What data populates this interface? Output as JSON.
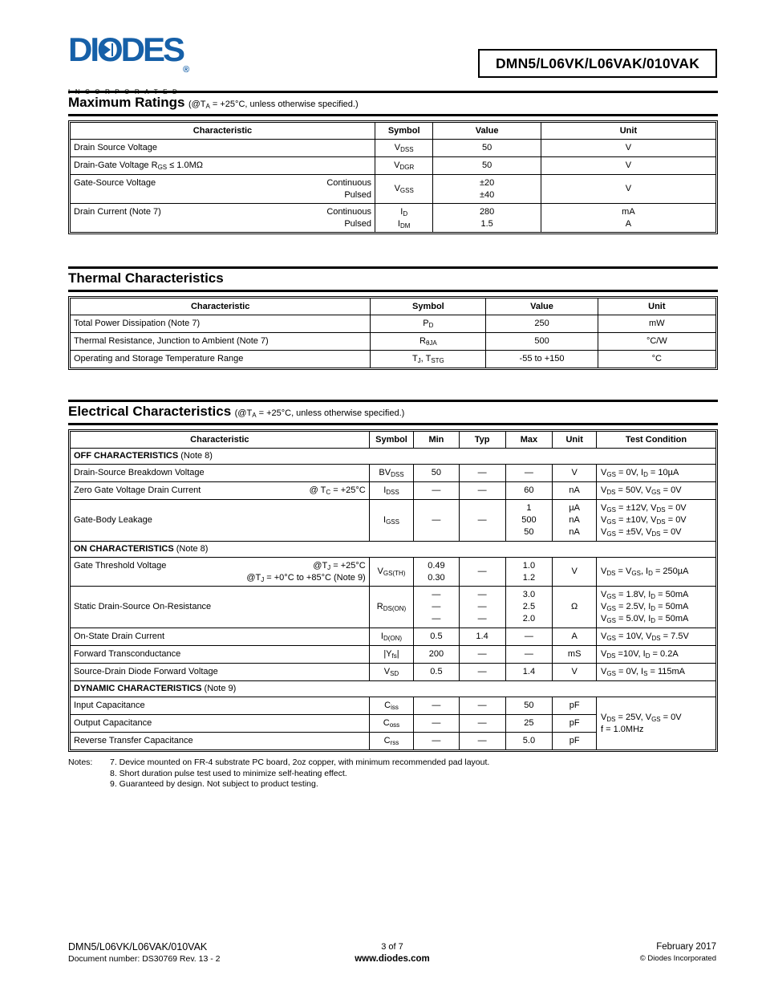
{
  "header": {
    "logo_brand": "DIODES",
    "logo_sub": "INCORPORATED",
    "registered_mark": "®",
    "brand_color": "#1660a8",
    "part_number": "DMN5/L06VK/L06VAK/010VAK"
  },
  "sections": {
    "maximum_ratings": {
      "title": "Maximum Ratings",
      "title_suffix": "(@T~A~ = +25°C, unless otherwise specified.)",
      "columns": [
        "Characteristic",
        "Symbol",
        "Value",
        "Unit"
      ],
      "rows": [
        {
          "char": "Drain Source Voltage",
          "sub": "",
          "cells": [
            "V~DSS~",
            "50",
            "V"
          ],
          "h": 1
        },
        {
          "char": "Drain-Gate Voltage R~GS~ ≤ 1.0MΩ",
          "sub": "",
          "cells": [
            "V~DGR~",
            "50",
            "V"
          ],
          "h": 1
        },
        {
          "char": "Gate-Source Voltage",
          "sub": "Continuous\nPulsed",
          "cells": [
            "V~GSS~",
            "±20\n±40",
            "V"
          ],
          "h": 2
        },
        {
          "char": "Drain Current (Note 7)",
          "sub": "Continuous\nPulsed",
          "cells": [
            "I~D~\nI~DM~",
            "280\n1.5",
            "mA\nA"
          ],
          "h": 2
        }
      ]
    },
    "thermal": {
      "title": "Thermal Characteristics",
      "title_suffix": "",
      "columns": [
        "Characteristic",
        "Symbol",
        "Value",
        "Unit"
      ],
      "rows": [
        {
          "char": "Total Power Dissipation (Note 7)",
          "sub": "",
          "cells": [
            "P~D~",
            "250",
            "mW"
          ],
          "h": 1
        },
        {
          "char": "Thermal Resistance, Junction to Ambient (Note 7)",
          "sub": "",
          "cells": [
            "R~θJA~",
            "500",
            "°C/W"
          ],
          "h": 1
        },
        {
          "char": "Operating and Storage Temperature Range",
          "sub": "",
          "cells": [
            "T~J~, T~STG~",
            "-55 to +150",
            "°C"
          ],
          "h": 1
        }
      ]
    },
    "electrical": {
      "title": "Electrical Characteristics",
      "title_suffix": "(@T~A~ = +25°C, unless otherwise specified.)",
      "columns": [
        "Characteristic",
        "Symbol",
        "Min",
        "Typ",
        "Max",
        "Unit",
        "Test Condition"
      ],
      "rows": [
        {
          "section": "OFF CHARACTERISTICS",
          "note": "(Note 8)"
        },
        {
          "char": "Drain-Source Breakdown Voltage",
          "sub": "",
          "cells": [
            "BV~DSS~",
            "50",
            "—",
            "—",
            "V"
          ],
          "test": "V~GS~ = 0V, I~D~ = 10µA",
          "h": 1
        },
        {
          "char": "Zero Gate Voltage Drain Current",
          "sub": "@ T~C~ = +25°C",
          "cells": [
            "I~DSS~",
            "—",
            "—",
            "60",
            "nA"
          ],
          "test": "V~DS~ = 50V, V~GS~ = 0V",
          "h": 1
        },
        {
          "char": "Gate-Body Leakage",
          "sub": "",
          "cells": [
            "I~GSS~",
            "—",
            "—",
            "1\n500\n50",
            "µA\nnA\nnA"
          ],
          "test": "V~GS~ = ±12V, V~DS~ = 0V\nV~GS~ = ±10V, V~DS~ = 0V\nV~GS~ = ±5V, V~DS~ = 0V",
          "h": 3
        },
        {
          "section": "ON CHARACTERISTICS",
          "note": "(Note 8)"
        },
        {
          "char": "Gate Threshold Voltage",
          "sub": "@T~J~ =  +25°C\n@T~J~ = +0°C to +85°C (Note 9)",
          "cells": [
            "V~GS(TH)~",
            "0.49\n0.30",
            "—",
            "1.0\n1.2",
            "V"
          ],
          "test": "V~DS~ = V~GS~, I~D~ = 250µA",
          "h": 2
        },
        {
          "char": "Static Drain-Source On-Resistance",
          "sub": "",
          "cells": [
            "R~DS(ON)~",
            "—\n—\n—",
            "—\n—\n—",
            "3.0\n2.5\n2.0",
            "Ω"
          ],
          "test": "V~GS~ = 1.8V, I~D~ = 50mA\nV~GS~ = 2.5V, I~D~ = 50mA\nV~GS~ = 5.0V, I~D~ = 50mA",
          "h": 3
        },
        {
          "char": "On-State Drain Current",
          "sub": "",
          "cells": [
            "I~D(ON)~",
            "0.5",
            "1.4",
            "—",
            "A"
          ],
          "test": "V~GS~ = 10V, V~DS~ = 7.5V",
          "h": 1
        },
        {
          "char": "Forward Transconductance",
          "sub": "",
          "cells": [
            "|Y~fs~|",
            "200",
            "—",
            "—",
            "mS"
          ],
          "test": "V~DS~ =10V, I~D~ = 0.2A",
          "h": 1
        },
        {
          "char": "Source-Drain Diode Forward Voltage",
          "sub": "",
          "cells": [
            "V~SD~",
            "0.5",
            "—",
            "1.4",
            "V"
          ],
          "test": "V~GS~ = 0V, I~S~ = 115mA",
          "h": 1
        },
        {
          "section": "DYNAMIC CHARACTERISTICS",
          "note": "(Note 9)"
        },
        {
          "char": "Input Capacitance",
          "sub": "",
          "cells": [
            "C~iss~",
            "—",
            "—",
            "50",
            "pF"
          ],
          "test": "V~DS~ = 25V, V~GS~ = 0V\nf = 1.0MHz",
          "test_rows": 3,
          "h": 1
        },
        {
          "char": "Output Capacitance",
          "sub": "",
          "cells": [
            "C~oss~",
            "—",
            "—",
            "25",
            "pF"
          ],
          "h": 1
        },
        {
          "char": "Reverse Transfer Capacitance",
          "sub": "",
          "cells": [
            "C~rss~",
            "—",
            "—",
            "5.0",
            "pF"
          ],
          "h": 1
        }
      ]
    }
  },
  "notes": {
    "label": "Notes:",
    "items": [
      "7. Device mounted on FR-4 substrate PC board, 2oz copper, with minimum recommended pad layout.",
      "8. Short duration pulse test used to minimize self-heating effect.",
      "9. Guaranteed by design. Not subject to product testing."
    ]
  },
  "footer": {
    "part": "DMN5/L06VK/L06VAK/010VAK",
    "doc": "Document number: DS30769 Rev. 13 - 2",
    "page": "3 of 7",
    "site": "www.diodes.com",
    "date": "February 2017",
    "copyright": "© Diodes Incorporated"
  }
}
